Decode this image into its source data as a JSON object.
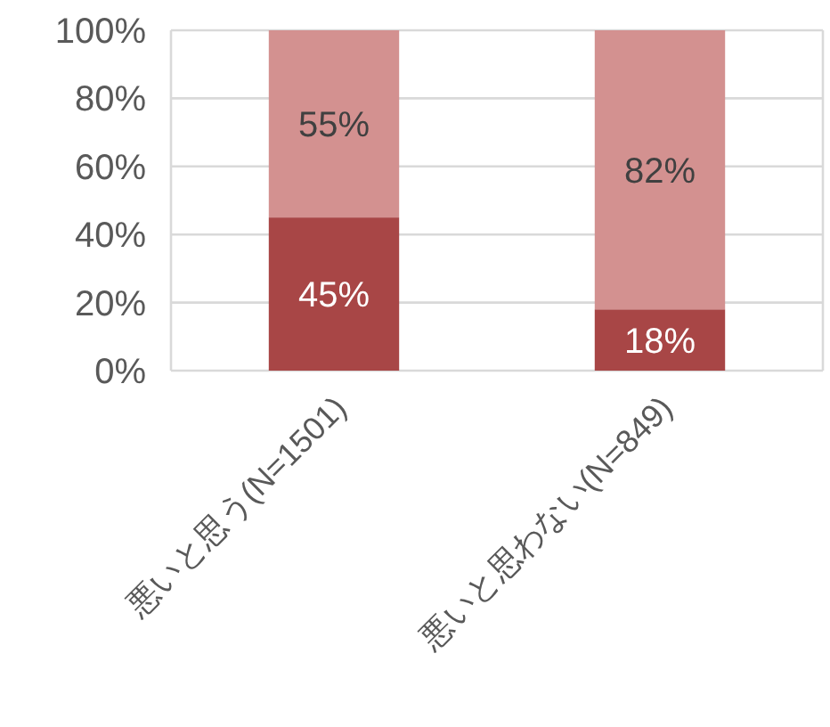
{
  "chart_data": {
    "type": "bar",
    "stacked": true,
    "grid": "y",
    "categories": [
      "悪いと思う(N=1501)",
      "悪いと思わない(N=849)"
    ],
    "series": [
      {
        "color": "#a84646",
        "values": [
          45,
          18
        ],
        "value_labels": [
          "45%",
          "18%"
        ]
      },
      {
        "color": "#d39190",
        "values": [
          55,
          82
        ],
        "value_labels": [
          "55%",
          "82%"
        ]
      }
    ],
    "ylim": [
      0,
      100
    ],
    "yticks": [
      {
        "value": 0,
        "label": "0%"
      },
      {
        "value": 20,
        "label": "20%"
      },
      {
        "value": 40,
        "label": "40%"
      },
      {
        "value": 60,
        "label": "60%"
      },
      {
        "value": 80,
        "label": "80%"
      },
      {
        "value": 100,
        "label": "100%"
      }
    ]
  }
}
